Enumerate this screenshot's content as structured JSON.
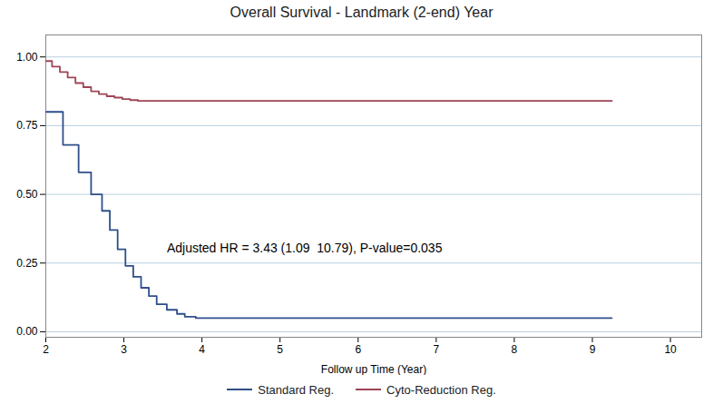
{
  "chart_data": {
    "type": "line",
    "title": "Overall Survival - Landmark (2-end) Year",
    "x_label": "Follow up Time (Year)",
    "xlim": [
      2,
      10.4
    ],
    "ylim": [
      -0.02,
      1.08
    ],
    "xticks": [
      2,
      3,
      4,
      5,
      6,
      7,
      8,
      9,
      10
    ],
    "yticks": [
      {
        "value": 0,
        "label": "0.00"
      },
      0.25,
      {
        "value": 0.5,
        "label": "0.50"
      },
      0.75,
      {
        "value": 1,
        "label": "1.00"
      }
    ],
    "grid": "y",
    "legend": "bottom",
    "annotations": [
      {
        "text": "Adjusted HR = 3.43 (1.09  10.79), P-value=0.035",
        "x": 3.55,
        "y": 0.305
      }
    ],
    "series": [
      {
        "name": "Standard Reg.",
        "color": "#2e4f8a",
        "x": [
          2.0,
          2.22,
          2.22,
          2.42,
          2.42,
          2.58,
          2.58,
          2.72,
          2.72,
          2.82,
          2.82,
          2.92,
          2.92,
          3.02,
          3.02,
          3.12,
          3.12,
          3.22,
          3.22,
          3.32,
          3.32,
          3.42,
          3.42,
          3.55,
          3.55,
          3.68,
          3.68,
          3.78,
          3.78,
          3.92,
          3.92,
          4.05,
          4.05,
          9.25
        ],
        "values": [
          0.8,
          0.8,
          0.68,
          0.68,
          0.58,
          0.58,
          0.5,
          0.5,
          0.44,
          0.44,
          0.37,
          0.37,
          0.3,
          0.3,
          0.24,
          0.24,
          0.2,
          0.2,
          0.16,
          0.16,
          0.13,
          0.13,
          0.1,
          0.1,
          0.08,
          0.08,
          0.065,
          0.065,
          0.055,
          0.055,
          0.05,
          0.05,
          0.05,
          0.05
        ]
      },
      {
        "name": "Cyto-Reduction Reg.",
        "color": "#9e4455",
        "x": [
          2.0,
          2.08,
          2.08,
          2.18,
          2.18,
          2.28,
          2.28,
          2.38,
          2.38,
          2.48,
          2.48,
          2.58,
          2.58,
          2.68,
          2.68,
          2.78,
          2.78,
          2.88,
          2.88,
          2.98,
          2.98,
          3.08,
          3.08,
          3.18,
          3.18,
          3.28,
          3.28,
          9.25
        ],
        "values": [
          0.985,
          0.985,
          0.965,
          0.965,
          0.945,
          0.945,
          0.925,
          0.925,
          0.905,
          0.905,
          0.89,
          0.89,
          0.875,
          0.875,
          0.865,
          0.865,
          0.857,
          0.857,
          0.852,
          0.852,
          0.847,
          0.847,
          0.843,
          0.843,
          0.84,
          0.84,
          0.84,
          0.84
        ]
      }
    ]
  }
}
